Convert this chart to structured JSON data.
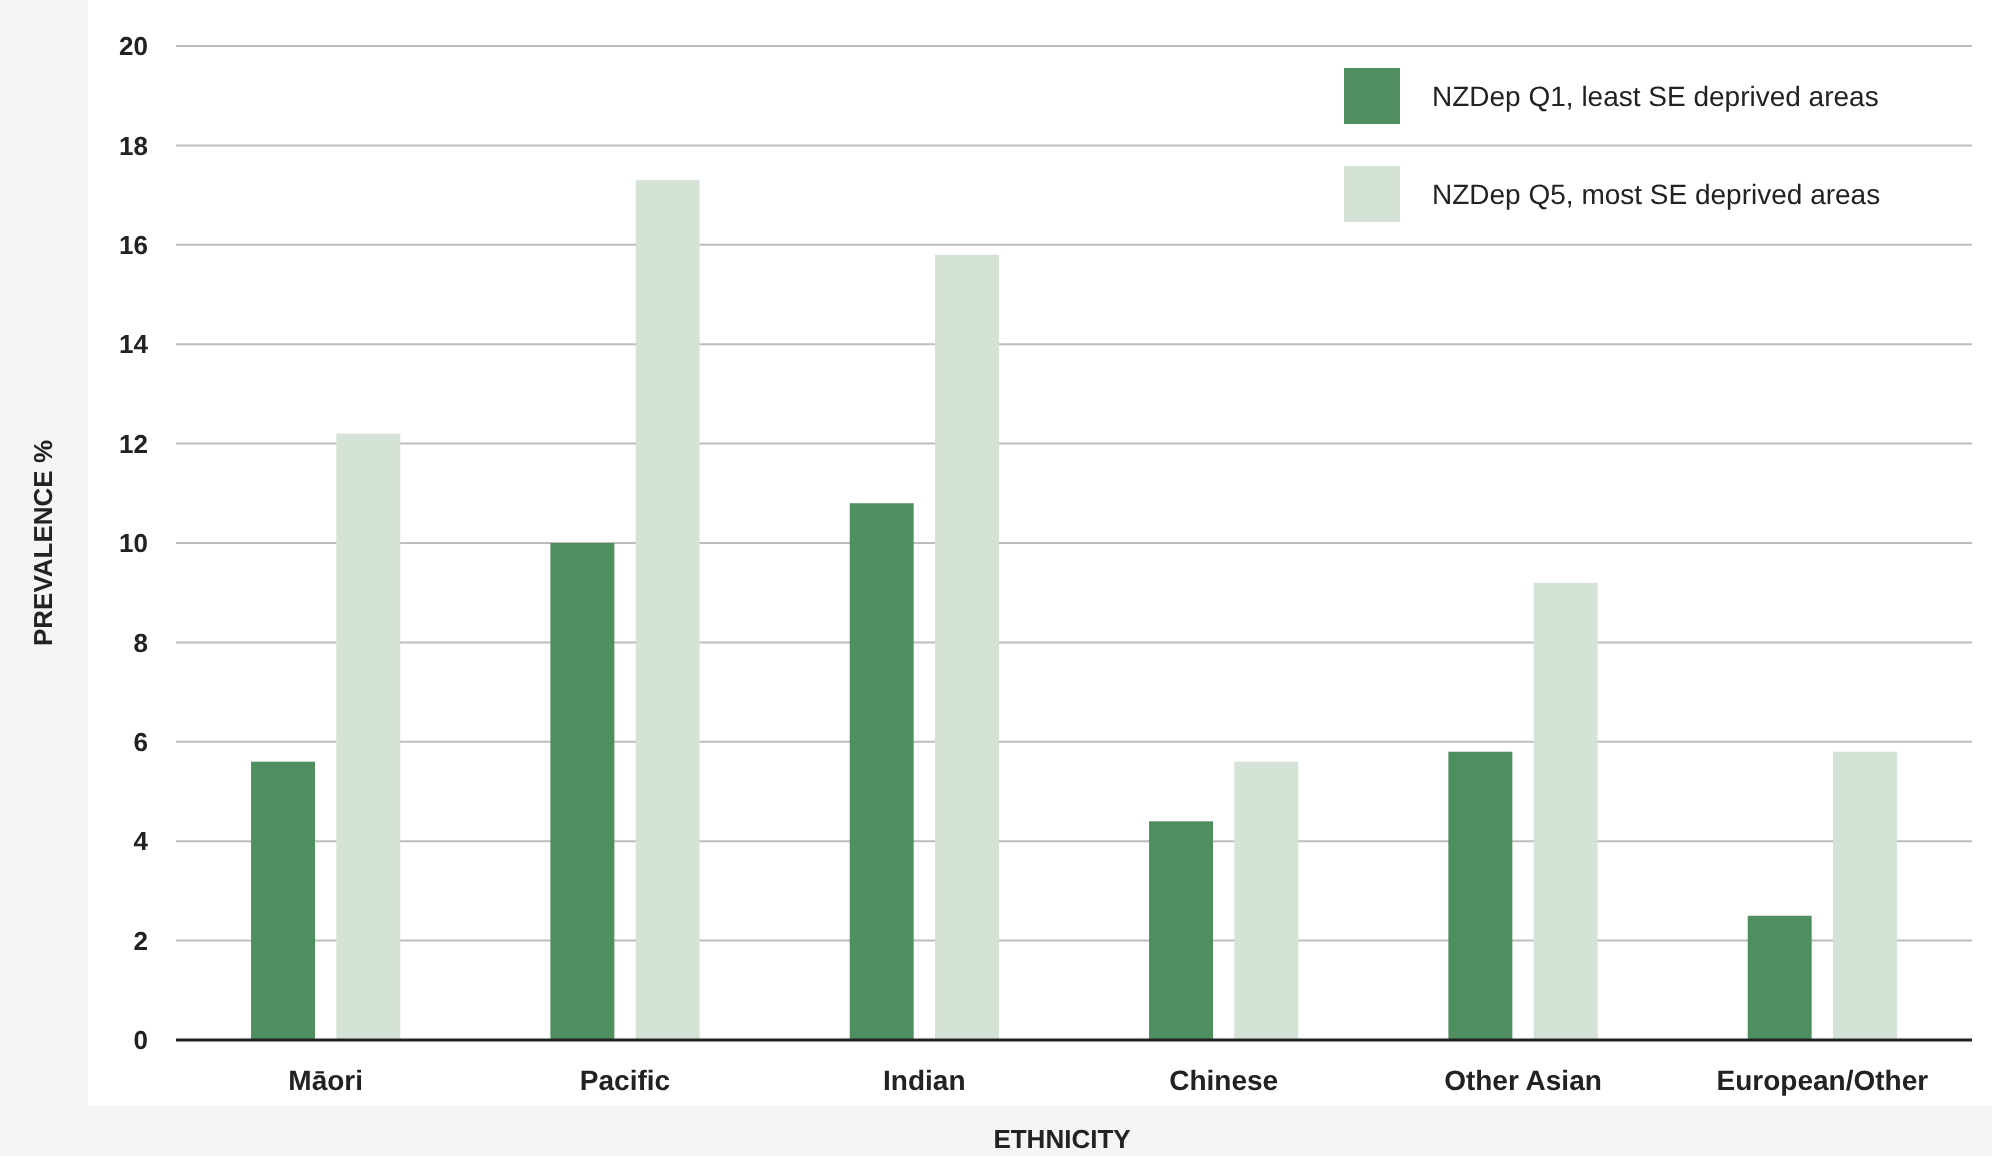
{
  "chart_data": {
    "type": "bar",
    "xlabel": "ETHNICITY",
    "ylabel": "PREVALENCE %",
    "categories": [
      "Māori",
      "Pacific",
      "Indian",
      "Chinese",
      "Other Asian",
      "European/Other"
    ],
    "series": [
      {
        "name": "NZDep Q1, least SE deprived areas",
        "color": "#4f8f5f",
        "values": [
          5.6,
          10.0,
          10.8,
          4.4,
          5.8,
          2.5
        ]
      },
      {
        "name": "NZDep Q5, most SE deprived areas",
        "color": "#d5e3d6",
        "values": [
          12.2,
          17.3,
          15.8,
          5.6,
          9.2,
          5.8
        ]
      }
    ],
    "ylim": [
      0,
      20
    ],
    "yticks": [
      0,
      2,
      4,
      6,
      8,
      10,
      12,
      14,
      16,
      18,
      20
    ],
    "grid": "y",
    "legend": "top right"
  }
}
